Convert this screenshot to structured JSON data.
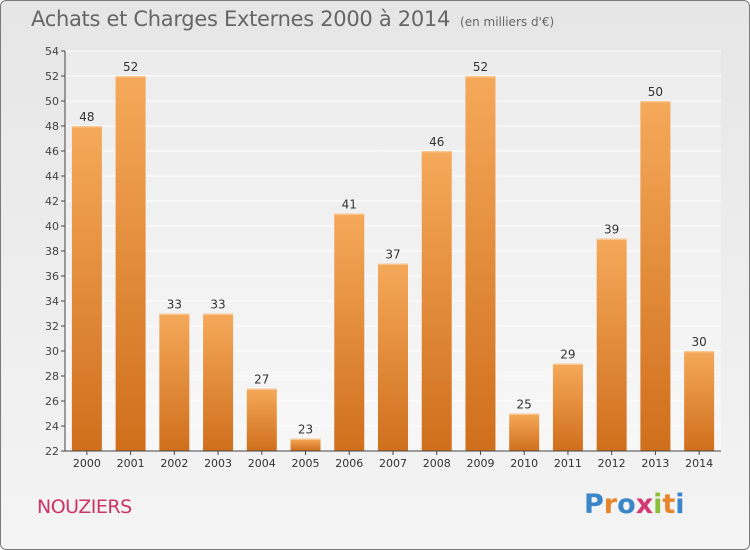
{
  "header": {
    "title": "Achats et Charges Externes 2000 à 2014",
    "subtitle": "(en milliers d'€)"
  },
  "footer": {
    "place": "NOUZIERS",
    "logo_letters": [
      "P",
      "r",
      "o",
      "x",
      "i",
      "t",
      "i"
    ],
    "logo_colors": [
      "#3a86c8",
      "#e8842c",
      "#3a86c8",
      "#d23a73",
      "#8bbf3a",
      "#e8842c",
      "#3a86c8"
    ]
  },
  "chart_data": {
    "type": "bar",
    "title": "Achats et Charges Externes 2000 à 2014",
    "subtitle": "(en milliers d'€)",
    "categories": [
      "2000",
      "2001",
      "2002",
      "2003",
      "2004",
      "2005",
      "2006",
      "2007",
      "2008",
      "2009",
      "2010",
      "2011",
      "2012",
      "2013",
      "2014"
    ],
    "values": [
      48,
      52,
      33,
      33,
      27,
      23,
      41,
      37,
      46,
      52,
      25,
      29,
      39,
      50,
      30
    ],
    "ylim": [
      22,
      54
    ],
    "yticks": [
      22,
      24,
      26,
      28,
      30,
      32,
      34,
      36,
      38,
      40,
      42,
      44,
      46,
      48,
      50,
      52,
      54
    ],
    "grid": true,
    "bar_color": "#f0a050",
    "bar_color_dark": "#cf6f1c"
  }
}
